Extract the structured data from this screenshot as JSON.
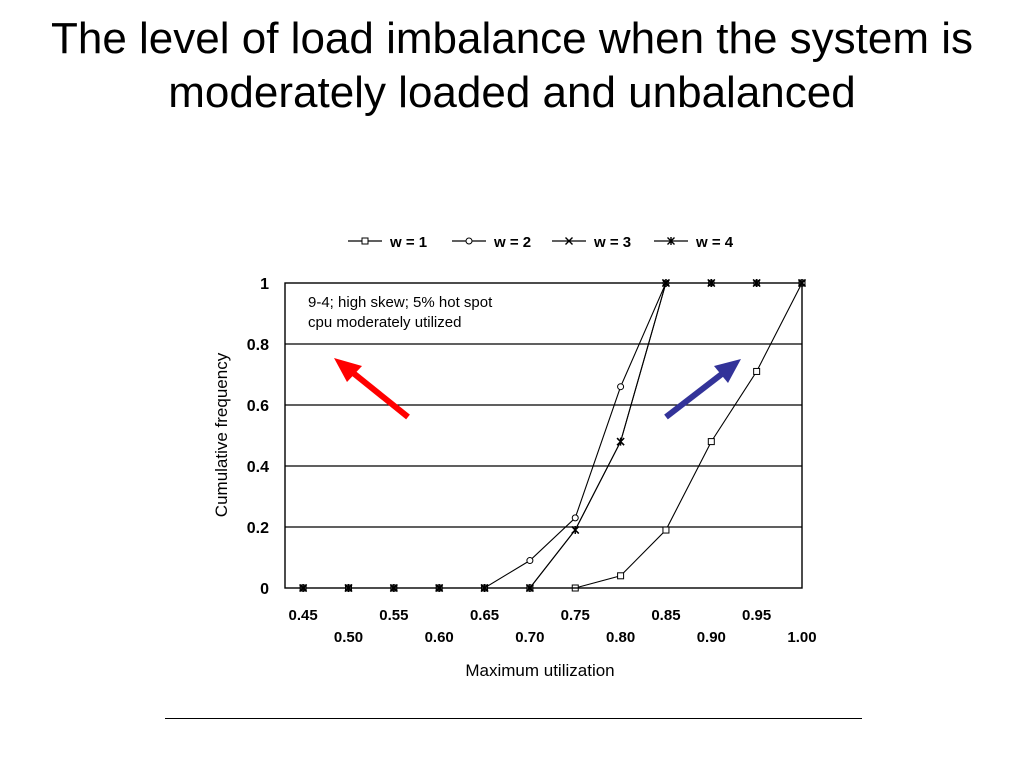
{
  "slide": {
    "title": "The level of load imbalance when the system is moderately loaded and unbalanced"
  },
  "chart_data": {
    "type": "line",
    "title": "",
    "xlabel": "Maximum utilization",
    "ylabel": "Cumulative frequency",
    "xlim": [
      0.43,
      1.0
    ],
    "ylim": [
      0,
      1
    ],
    "yticks": [
      "0",
      "0.2",
      "0.4",
      "0.6",
      "0.8",
      "1"
    ],
    "xticks_upper": [
      "0.45",
      "0.55",
      "0.65",
      "0.75",
      "0.85",
      "0.95"
    ],
    "xticks_lower": [
      "0.50",
      "0.60",
      "0.70",
      "0.80",
      "0.90",
      "1.00"
    ],
    "grid": "horizontal",
    "legend_position": "top",
    "annotation": [
      "9-4; high skew; 5% hot spot",
      "cpu moderately utilized"
    ],
    "series": [
      {
        "name": "w = 1",
        "marker": "square",
        "x": [
          0.45,
          0.5,
          0.55,
          0.6,
          0.65,
          0.7,
          0.75,
          0.8,
          0.85,
          0.9,
          0.95,
          1.0
        ],
        "y": [
          0,
          0,
          0,
          0,
          0,
          0,
          0,
          0.04,
          0.19,
          0.48,
          0.71,
          1.0
        ]
      },
      {
        "name": "w = 2",
        "marker": "circle",
        "x": [
          0.45,
          0.5,
          0.55,
          0.6,
          0.65,
          0.7,
          0.75,
          0.8,
          0.85,
          0.9,
          0.95,
          1.0
        ],
        "y": [
          0,
          0,
          0,
          0,
          0,
          0.09,
          0.23,
          0.66,
          1.0,
          1.0,
          1.0,
          1.0
        ]
      },
      {
        "name": "w = 3",
        "marker": "cross",
        "x": [
          0.45,
          0.5,
          0.55,
          0.6,
          0.65,
          0.7,
          0.75,
          0.8,
          0.85,
          0.9,
          0.95,
          1.0
        ],
        "y": [
          0,
          0,
          0,
          0,
          0,
          0,
          0.19,
          0.48,
          1.0,
          1.0,
          1.0,
          1.0
        ]
      },
      {
        "name": "w = 4",
        "marker": "star",
        "x": [
          0.45,
          0.5,
          0.55,
          0.6,
          0.65,
          0.7,
          0.75,
          0.8,
          0.85,
          0.9,
          0.95,
          1.0
        ],
        "y": [
          0,
          0,
          0,
          0,
          0,
          0,
          0.19,
          0.48,
          1.0,
          1.0,
          1.0,
          1.0
        ]
      }
    ],
    "arrows": [
      {
        "name": "red-arrow",
        "color": "#ff0000"
      },
      {
        "name": "blue-arrow",
        "color": "#333399"
      }
    ]
  }
}
